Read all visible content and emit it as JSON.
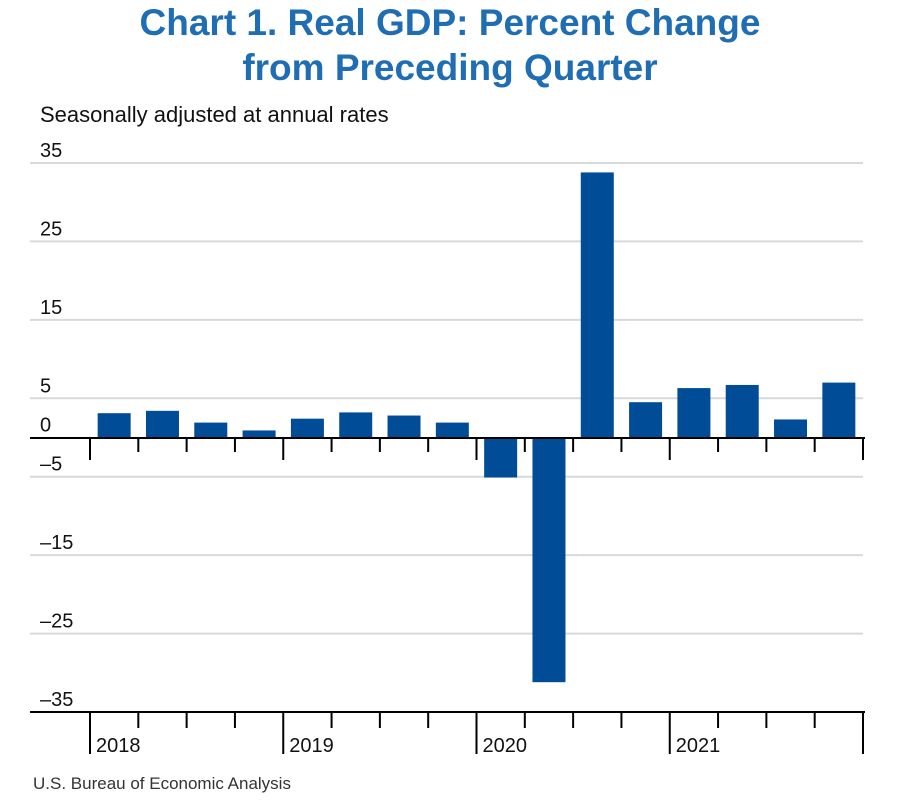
{
  "title_line1": "Chart 1. Real GDP: Percent Change",
  "title_line2": "from Preceding Quarter",
  "subtitle": "Seasonally adjusted at annual rates",
  "source": "U.S. Bureau of Economic Analysis",
  "colors": {
    "bar": "#004c97",
    "title": "#1f6db3",
    "grid": "#d9d9d9"
  },
  "chart_data": {
    "type": "bar",
    "title": "Chart 1. Real GDP: Percent Change from Preceding Quarter",
    "subtitle": "Seasonally adjusted at annual rates",
    "xlabel": "",
    "ylabel": "",
    "ylim": [
      -35,
      35
    ],
    "yticks": [
      35,
      25,
      15,
      5,
      0,
      -5,
      -15,
      -25,
      -35
    ],
    "yticks_labels": [
      "35",
      "25",
      "15",
      "5",
      "0",
      "–5",
      "–15",
      "–25",
      "–35"
    ],
    "grid": true,
    "year_labels": [
      "2018",
      "2019",
      "2020",
      "2021"
    ],
    "categories": [
      "2018 Q1",
      "2018 Q2",
      "2018 Q3",
      "2018 Q4",
      "2019 Q1",
      "2019 Q2",
      "2019 Q3",
      "2019 Q4",
      "2020 Q1",
      "2020 Q2",
      "2020 Q3",
      "2020 Q4",
      "2021 Q1",
      "2021 Q2",
      "2021 Q3",
      "2021 Q4"
    ],
    "values": [
      3.1,
      3.4,
      1.9,
      0.9,
      2.4,
      3.2,
      2.8,
      1.9,
      -5.1,
      -31.2,
      33.8,
      4.5,
      6.3,
      6.7,
      2.3,
      7.0
    ]
  }
}
